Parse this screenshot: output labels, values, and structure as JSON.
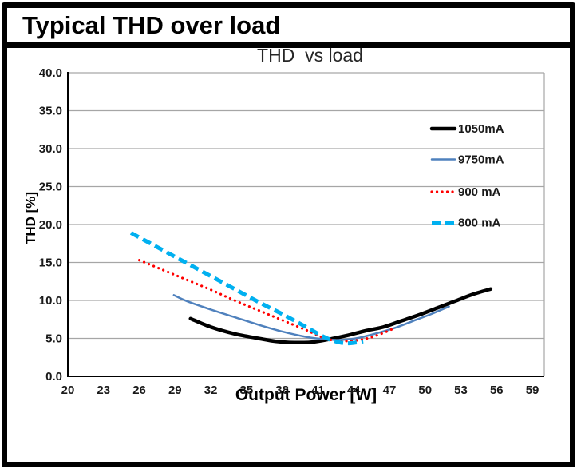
{
  "header": {
    "title": "Typical THD over load"
  },
  "chart_data": {
    "type": "line",
    "title": "THD  vs load",
    "xlabel": "Output Power [W]",
    "ylabel": "THD [%]",
    "xlim": [
      20,
      60
    ],
    "ylim": [
      0,
      40
    ],
    "grid": "horizontal",
    "legend_position": "upper-right-inside",
    "colors": {
      "gridline": "#a6a6a6",
      "axis": "#000000",
      "background": "#ffffff"
    },
    "xticks": [
      20,
      23,
      26,
      29,
      32,
      35,
      38,
      41,
      44,
      47,
      50,
      53,
      56,
      59
    ],
    "yticks": [
      [
        0,
        "0.0"
      ],
      [
        5,
        "5.0"
      ],
      [
        10,
        "10.0"
      ],
      [
        15,
        "15.0"
      ],
      [
        20,
        "20.0"
      ],
      [
        25,
        "25.0"
      ],
      [
        30,
        "30.0"
      ],
      [
        35,
        "35.0"
      ],
      [
        40,
        "40.0"
      ]
    ],
    "series": [
      {
        "name": "1050mA",
        "color": "#000000",
        "style": "solid",
        "width": 4.5,
        "points": [
          [
            30.3,
            7.6
          ],
          [
            32,
            6.5
          ],
          [
            34,
            5.6
          ],
          [
            36,
            5.0
          ],
          [
            37.5,
            4.6
          ],
          [
            39,
            4.45
          ],
          [
            40.5,
            4.5
          ],
          [
            42,
            4.9
          ],
          [
            43.5,
            5.4
          ],
          [
            45,
            6.0
          ],
          [
            46.5,
            6.5
          ],
          [
            48,
            7.3
          ],
          [
            49.5,
            8.1
          ],
          [
            51,
            9.0
          ],
          [
            52.5,
            9.9
          ],
          [
            54,
            10.8
          ],
          [
            55.5,
            11.5
          ]
        ]
      },
      {
        "name": "9750mA",
        "color": "#4f81bd",
        "style": "solid",
        "width": 2.5,
        "points": [
          [
            28.9,
            10.7
          ],
          [
            30,
            9.9
          ],
          [
            32,
            8.8
          ],
          [
            34,
            7.8
          ],
          [
            36,
            6.8
          ],
          [
            38,
            5.9
          ],
          [
            40,
            5.2
          ],
          [
            41.5,
            4.9
          ],
          [
            43,
            4.8
          ],
          [
            44.5,
            5.1
          ],
          [
            46,
            5.7
          ],
          [
            47.5,
            6.4
          ],
          [
            49,
            7.3
          ],
          [
            50.5,
            8.2
          ],
          [
            52,
            9.2
          ]
        ]
      },
      {
        "name": "900 mA",
        "color": "#ff0000",
        "style": "dotted",
        "width": 3.2,
        "points": [
          [
            26,
            15.3
          ],
          [
            28,
            14.0
          ],
          [
            30,
            12.7
          ],
          [
            32,
            11.4
          ],
          [
            34,
            10.0
          ],
          [
            36,
            8.7
          ],
          [
            38,
            7.4
          ],
          [
            40,
            6.1
          ],
          [
            41.8,
            4.9
          ],
          [
            43.5,
            4.65
          ],
          [
            45,
            4.95
          ],
          [
            46.3,
            5.6
          ],
          [
            47.5,
            6.4
          ]
        ]
      },
      {
        "name": "800 mA",
        "color": "#00b0f0",
        "style": "dashed",
        "width": 5,
        "points": [
          [
            25.3,
            18.9
          ],
          [
            28,
            16.6
          ],
          [
            30,
            14.9
          ],
          [
            32,
            13.2
          ],
          [
            34,
            11.5
          ],
          [
            36,
            9.8
          ],
          [
            38,
            8.2
          ],
          [
            40,
            6.5
          ],
          [
            41.5,
            5.2
          ],
          [
            42.5,
            4.6
          ],
          [
            43.5,
            4.35
          ],
          [
            44.8,
            4.6
          ]
        ]
      }
    ]
  }
}
